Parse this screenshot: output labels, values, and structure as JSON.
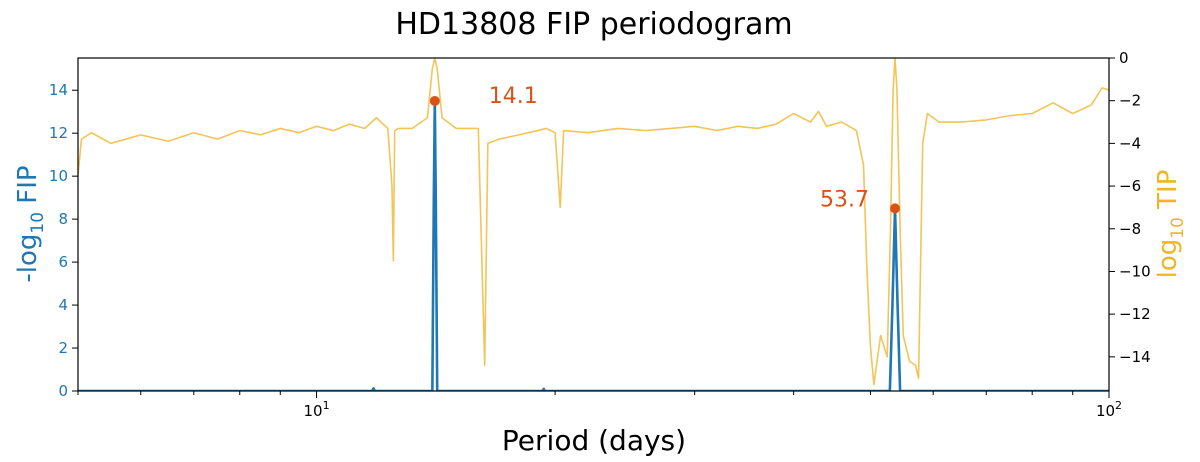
{
  "chart_data": {
    "type": "line",
    "title": "HD13808 FIP periodogram",
    "xlabel": "Period (days)",
    "xscale": "log",
    "xlim": [
      5,
      100
    ],
    "x_ticks": [
      {
        "value": 10,
        "base": "10",
        "exp": "1"
      },
      {
        "value": 100,
        "base": "10",
        "exp": "2"
      }
    ],
    "ylabel_left": {
      "prefix": "-log",
      "sub": "10",
      "suffix": " FIP",
      "color": "#1f77b4"
    },
    "ylim_left": [
      0,
      15.5
    ],
    "y_ticks_left": [
      0,
      2,
      4,
      6,
      8,
      10,
      12,
      14
    ],
    "ylabel_right": {
      "prefix": "log",
      "sub": "10",
      "suffix": " TIP",
      "color": "#f0b429"
    },
    "ylim_right": [
      -15.6,
      0
    ],
    "y_ticks_right": [
      0,
      -2,
      -4,
      -6,
      -8,
      -10,
      -12,
      -14
    ],
    "y_tick_labels_right": [
      "0",
      "−2",
      "−4",
      "−6",
      "−8",
      "−10",
      "−12",
      "−14"
    ],
    "grid": false,
    "series": [
      {
        "axis": "left",
        "color": "#1f77b4",
        "points": [
          [
            5.0,
            0.0
          ],
          [
            11.75,
            0.0
          ],
          [
            11.8,
            0.12
          ],
          [
            11.85,
            0.0
          ],
          [
            14.0,
            0.0
          ],
          [
            14.06,
            9.0
          ],
          [
            14.1,
            13.5
          ],
          [
            14.14,
            9.0
          ],
          [
            14.2,
            0.0
          ],
          [
            19.3,
            0.0
          ],
          [
            19.35,
            0.1
          ],
          [
            19.4,
            0.0
          ],
          [
            52.9,
            0.0
          ],
          [
            53.3,
            4.0
          ],
          [
            53.7,
            8.5
          ],
          [
            54.1,
            4.0
          ],
          [
            54.5,
            0.0
          ],
          [
            100.0,
            0.0
          ]
        ]
      },
      {
        "axis": "right",
        "color": "#f0b429",
        "points": [
          [
            5.0,
            -5.5
          ],
          [
            5.05,
            -3.8
          ],
          [
            5.2,
            -3.5
          ],
          [
            5.5,
            -4.0
          ],
          [
            6.0,
            -3.6
          ],
          [
            6.5,
            -3.9
          ],
          [
            7.0,
            -3.5
          ],
          [
            7.5,
            -3.8
          ],
          [
            8.0,
            -3.4
          ],
          [
            8.5,
            -3.6
          ],
          [
            9.0,
            -3.3
          ],
          [
            9.5,
            -3.5
          ],
          [
            10.0,
            -3.2
          ],
          [
            10.5,
            -3.4
          ],
          [
            11.0,
            -3.1
          ],
          [
            11.5,
            -3.3
          ],
          [
            11.9,
            -2.8
          ],
          [
            12.3,
            -3.3
          ],
          [
            12.45,
            -6.0
          ],
          [
            12.5,
            -9.5
          ],
          [
            12.55,
            -3.4
          ],
          [
            12.7,
            -3.3
          ],
          [
            13.2,
            -3.3
          ],
          [
            13.8,
            -2.8
          ],
          [
            14.0,
            -0.5
          ],
          [
            14.1,
            0.0
          ],
          [
            14.2,
            -0.5
          ],
          [
            14.4,
            -2.8
          ],
          [
            15.0,
            -3.3
          ],
          [
            16.0,
            -3.3
          ],
          [
            16.3,
            -14.4
          ],
          [
            16.45,
            -4.0
          ],
          [
            17.0,
            -3.8
          ],
          [
            18.0,
            -3.6
          ],
          [
            19.0,
            -3.4
          ],
          [
            19.5,
            -3.3
          ],
          [
            20.0,
            -3.5
          ],
          [
            20.3,
            -7.0
          ],
          [
            20.5,
            -3.4
          ],
          [
            22.0,
            -3.5
          ],
          [
            24.0,
            -3.3
          ],
          [
            26.0,
            -3.4
          ],
          [
            28.0,
            -3.3
          ],
          [
            30.0,
            -3.2
          ],
          [
            32.0,
            -3.4
          ],
          [
            34.0,
            -3.2
          ],
          [
            36.0,
            -3.3
          ],
          [
            38.0,
            -3.1
          ],
          [
            40.0,
            -2.6
          ],
          [
            42.0,
            -3.0
          ],
          [
            43.0,
            -2.5
          ],
          [
            44.0,
            -3.2
          ],
          [
            46.0,
            -3.0
          ],
          [
            48.0,
            -3.4
          ],
          [
            49.0,
            -5.0
          ],
          [
            49.5,
            -10.0
          ],
          [
            50.0,
            -13.5
          ],
          [
            50.5,
            -15.3
          ],
          [
            51.5,
            -13.0
          ],
          [
            52.5,
            -14.0
          ],
          [
            53.0,
            -8.0
          ],
          [
            53.4,
            -1.5
          ],
          [
            53.7,
            0.0
          ],
          [
            54.0,
            -1.5
          ],
          [
            54.5,
            -8.0
          ],
          [
            55.0,
            -13.0
          ],
          [
            56.0,
            -14.2
          ],
          [
            57.0,
            -14.4
          ],
          [
            57.5,
            -15.0
          ],
          [
            58.2,
            -4.0
          ],
          [
            59.0,
            -2.6
          ],
          [
            61.0,
            -3.0
          ],
          [
            65.0,
            -3.0
          ],
          [
            70.0,
            -2.9
          ],
          [
            75.0,
            -2.7
          ],
          [
            80.0,
            -2.6
          ],
          [
            85.0,
            -2.1
          ],
          [
            90.0,
            -2.6
          ],
          [
            95.0,
            -2.2
          ],
          [
            98.0,
            -1.4
          ],
          [
            100.0,
            -1.5
          ]
        ]
      }
    ],
    "annotations": [
      {
        "text": "14.1",
        "x": 14.1,
        "y": 13.5,
        "color": "#d95319",
        "place": "right"
      },
      {
        "text": "53.7",
        "x": 53.7,
        "y": 8.5,
        "color": "#d95319",
        "place": "left"
      }
    ]
  }
}
